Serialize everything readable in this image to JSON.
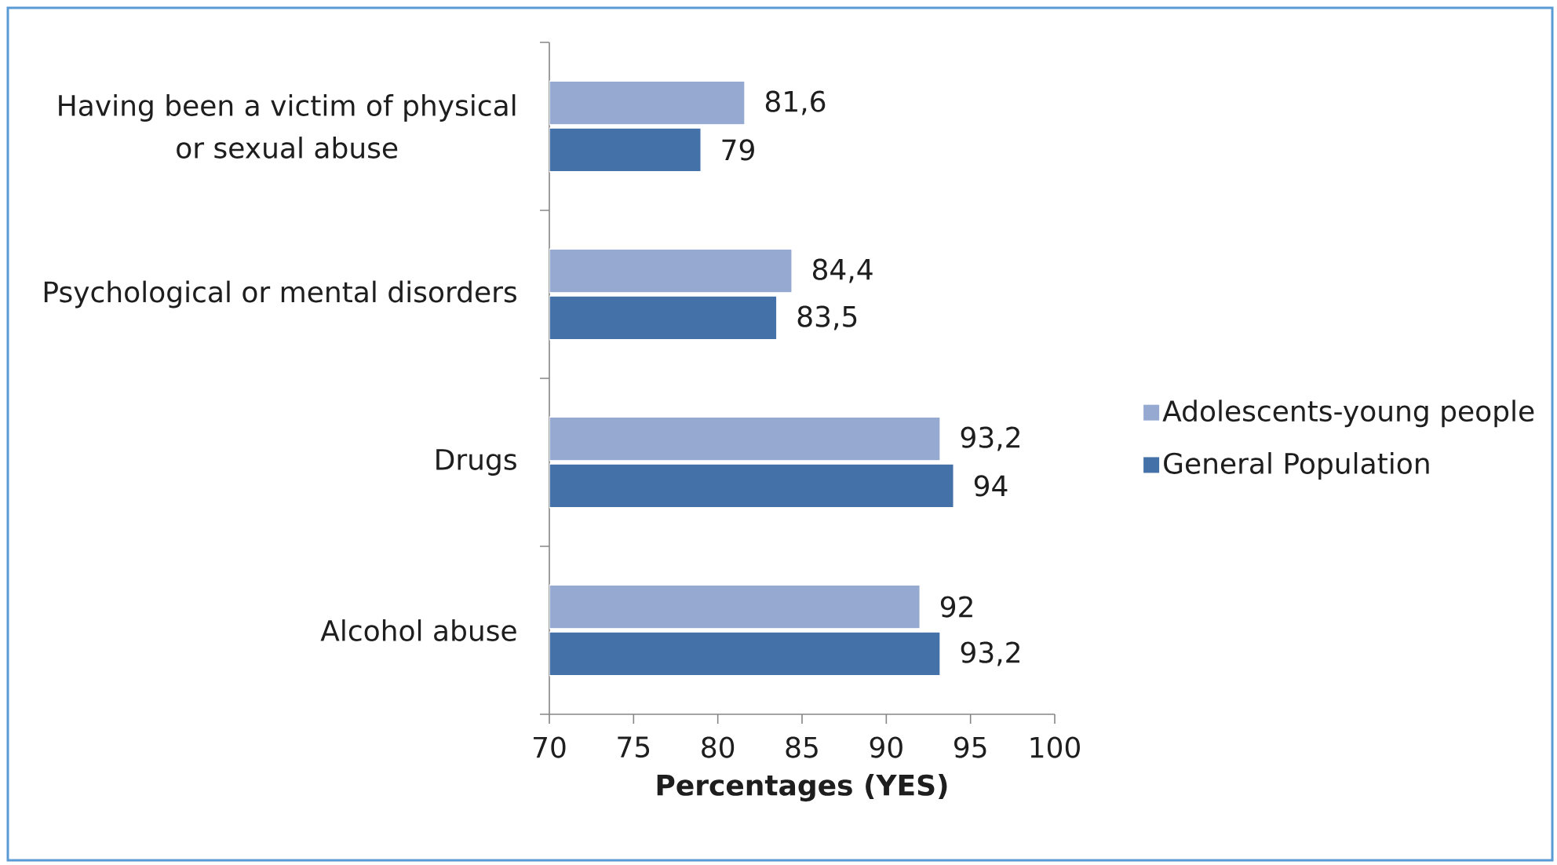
{
  "chart_data": {
    "type": "bar",
    "orientation": "horizontal",
    "categories": [
      "Having been a victim of physical or sexual abuse",
      "Psychological or mental disorders",
      "Drugs",
      "Alcohol abuse"
    ],
    "series": [
      {
        "name": "Adolescents-young people",
        "color": "#95a9d1",
        "values": [
          81.6,
          84.4,
          93.2,
          92
        ],
        "value_labels": [
          "81,6",
          "84,4",
          "93,2",
          "92"
        ]
      },
      {
        "name": "General Population",
        "color": "#4472a8",
        "values": [
          79,
          83.5,
          94,
          93.2
        ],
        "value_labels": [
          "79",
          "83,5",
          "94",
          "93,2"
        ]
      }
    ],
    "xlabel": "Percentages (YES)",
    "xlim": [
      70,
      100
    ],
    "xticks": [
      70,
      75,
      80,
      85,
      90,
      95,
      100
    ],
    "legend": "right"
  }
}
